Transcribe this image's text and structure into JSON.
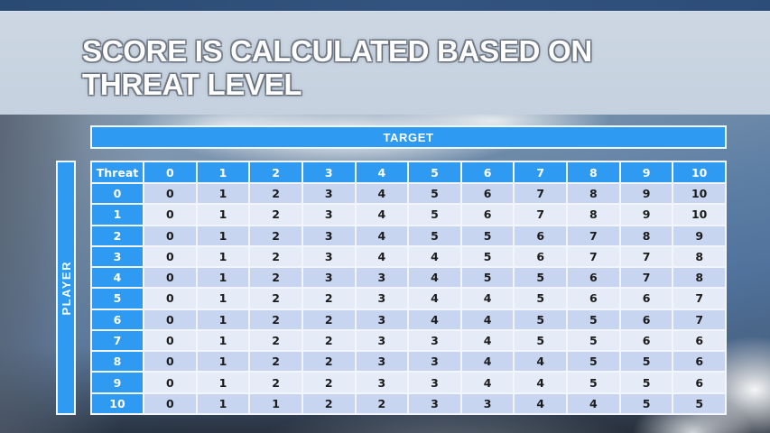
{
  "title": {
    "line1": "SCORE IS CALCULATED BASED ON",
    "line2": "THREAT LEVEL"
  },
  "chart_data": {
    "type": "table",
    "title": "SCORE IS CALCULATED BASED ON THREAT LEVEL",
    "column_group_label": "TARGET",
    "row_group_label": "PLAYER",
    "corner_label": "Threat",
    "columns": [
      "0",
      "1",
      "2",
      "3",
      "4",
      "5",
      "6",
      "7",
      "8",
      "9",
      "10"
    ],
    "rows": [
      {
        "label": "0",
        "values": [
          0,
          1,
          2,
          3,
          4,
          5,
          6,
          7,
          8,
          9,
          10
        ]
      },
      {
        "label": "1",
        "values": [
          0,
          1,
          2,
          3,
          4,
          5,
          6,
          7,
          8,
          9,
          10
        ]
      },
      {
        "label": "2",
        "values": [
          0,
          1,
          2,
          3,
          4,
          5,
          5,
          6,
          7,
          8,
          9
        ]
      },
      {
        "label": "3",
        "values": [
          0,
          1,
          2,
          3,
          4,
          4,
          5,
          6,
          7,
          7,
          8
        ]
      },
      {
        "label": "4",
        "values": [
          0,
          1,
          2,
          3,
          3,
          4,
          5,
          5,
          6,
          7,
          8
        ]
      },
      {
        "label": "5",
        "values": [
          0,
          1,
          2,
          2,
          3,
          4,
          4,
          5,
          6,
          6,
          7
        ]
      },
      {
        "label": "6",
        "values": [
          0,
          1,
          2,
          2,
          3,
          4,
          4,
          5,
          5,
          6,
          7
        ]
      },
      {
        "label": "7",
        "values": [
          0,
          1,
          2,
          2,
          3,
          3,
          4,
          5,
          5,
          6,
          6
        ]
      },
      {
        "label": "8",
        "values": [
          0,
          1,
          2,
          2,
          3,
          3,
          4,
          4,
          5,
          5,
          6
        ]
      },
      {
        "label": "9",
        "values": [
          0,
          1,
          2,
          2,
          3,
          3,
          4,
          4,
          5,
          5,
          6
        ]
      },
      {
        "label": "10",
        "values": [
          0,
          1,
          1,
          2,
          2,
          3,
          3,
          4,
          4,
          5,
          5
        ]
      }
    ]
  },
  "colors": {
    "accent-blue": "#2e9af2",
    "row-band-dark": "#c7d5f0",
    "row-band-light": "#e6ebf8",
    "grid-line": "#f2f6fc",
    "cell-text": "#1c1c1c",
    "header-text": "#ffffff",
    "topbar-blue": "#2d4d7b",
    "title-band": "#c9d4e1",
    "title-text": "#ffffff"
  }
}
